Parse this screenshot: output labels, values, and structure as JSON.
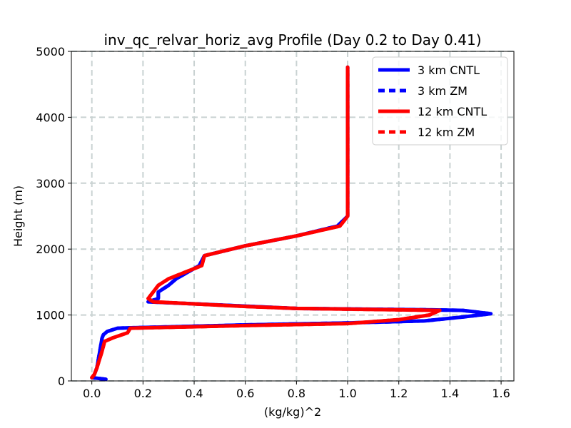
{
  "chart_data": {
    "type": "line",
    "title": "inv_qc_relvar_horiz_avg Profile (Day 0.2 to Day 0.41)",
    "xlabel": "(kg/kg)^2",
    "ylabel": "Height (m)",
    "xlim": [
      -0.08,
      1.65
    ],
    "ylim": [
      0,
      5000
    ],
    "xticks": [
      0.0,
      0.2,
      0.4,
      0.6,
      0.8,
      1.0,
      1.2,
      1.4,
      1.6
    ],
    "xtick_labels": [
      "0.0",
      "0.2",
      "0.4",
      "0.6",
      "0.8",
      "1.0",
      "1.2",
      "1.4",
      "1.6"
    ],
    "yticks": [
      0,
      1000,
      2000,
      3000,
      4000,
      5000
    ],
    "ytick_labels": [
      "0",
      "1000",
      "2000",
      "3000",
      "4000",
      "5000"
    ],
    "grid": true,
    "legend_position": "top-right",
    "series": [
      {
        "name": "3 km CNTL",
        "color": "#0000ff",
        "style": "solid",
        "points": [
          [
            0.055,
            25
          ],
          [
            0.0,
            50
          ],
          [
            0.01,
            100
          ],
          [
            0.02,
            200
          ],
          [
            0.04,
            650
          ],
          [
            0.045,
            700
          ],
          [
            0.06,
            750
          ],
          [
            0.1,
            800
          ],
          [
            0.14,
            805
          ],
          [
            0.6,
            850
          ],
          [
            1.0,
            880
          ],
          [
            1.3,
            910
          ],
          [
            1.45,
            970
          ],
          [
            1.56,
            1020
          ],
          [
            1.45,
            1070
          ],
          [
            1.3,
            1080
          ],
          [
            0.8,
            1100
          ],
          [
            0.22,
            1200
          ],
          [
            0.26,
            1250
          ],
          [
            0.26,
            1350
          ],
          [
            0.3,
            1450
          ],
          [
            0.33,
            1550
          ],
          [
            0.42,
            1750
          ],
          [
            0.44,
            1900
          ],
          [
            0.6,
            2050
          ],
          [
            0.8,
            2200
          ],
          [
            0.96,
            2350
          ],
          [
            1.0,
            2500
          ],
          [
            1.0,
            3000
          ],
          [
            1.0,
            4000
          ],
          [
            1.0,
            4760
          ]
        ]
      },
      {
        "name": "3 km ZM",
        "color": "#0000ff",
        "style": "dashed",
        "points": [
          [
            0.055,
            25
          ],
          [
            0.0,
            50
          ],
          [
            0.01,
            100
          ],
          [
            0.02,
            200
          ],
          [
            0.04,
            650
          ],
          [
            0.045,
            700
          ],
          [
            0.06,
            750
          ],
          [
            0.1,
            800
          ],
          [
            0.14,
            805
          ],
          [
            0.6,
            850
          ],
          [
            1.0,
            880
          ],
          [
            1.3,
            910
          ],
          [
            1.45,
            970
          ],
          [
            1.56,
            1020
          ],
          [
            1.45,
            1070
          ],
          [
            1.3,
            1080
          ],
          [
            0.8,
            1100
          ],
          [
            0.22,
            1200
          ],
          [
            0.26,
            1250
          ],
          [
            0.26,
            1350
          ],
          [
            0.3,
            1450
          ],
          [
            0.33,
            1550
          ],
          [
            0.42,
            1750
          ],
          [
            0.44,
            1900
          ],
          [
            0.6,
            2050
          ],
          [
            0.8,
            2200
          ],
          [
            0.96,
            2350
          ],
          [
            1.0,
            2500
          ],
          [
            1.0,
            3000
          ],
          [
            1.0,
            4000
          ],
          [
            1.0,
            4760
          ]
        ]
      },
      {
        "name": "12 km CNTL",
        "color": "#ff0000",
        "style": "solid",
        "points": [
          [
            0.0,
            50
          ],
          [
            0.01,
            100
          ],
          [
            0.02,
            200
          ],
          [
            0.04,
            450
          ],
          [
            0.05,
            600
          ],
          [
            0.08,
            650
          ],
          [
            0.14,
            730
          ],
          [
            0.15,
            800
          ],
          [
            0.6,
            840
          ],
          [
            1.0,
            870
          ],
          [
            1.2,
            930
          ],
          [
            1.32,
            1000
          ],
          [
            1.36,
            1070
          ],
          [
            0.8,
            1100
          ],
          [
            0.6,
            1130
          ],
          [
            0.24,
            1200
          ],
          [
            0.22,
            1250
          ],
          [
            0.24,
            1350
          ],
          [
            0.26,
            1450
          ],
          [
            0.3,
            1550
          ],
          [
            0.43,
            1750
          ],
          [
            0.44,
            1900
          ],
          [
            0.6,
            2050
          ],
          [
            0.8,
            2200
          ],
          [
            0.97,
            2350
          ],
          [
            1.0,
            2500
          ],
          [
            1.0,
            3000
          ],
          [
            1.0,
            4000
          ],
          [
            1.0,
            4760
          ]
        ]
      },
      {
        "name": "12 km ZM",
        "color": "#ff0000",
        "style": "dashed",
        "points": [
          [
            0.0,
            50
          ],
          [
            0.01,
            100
          ],
          [
            0.02,
            200
          ],
          [
            0.04,
            450
          ],
          [
            0.05,
            600
          ],
          [
            0.08,
            650
          ],
          [
            0.14,
            730
          ],
          [
            0.15,
            800
          ],
          [
            0.6,
            840
          ],
          [
            1.0,
            870
          ],
          [
            1.2,
            930
          ],
          [
            1.32,
            1000
          ],
          [
            1.36,
            1070
          ],
          [
            0.8,
            1100
          ],
          [
            0.6,
            1130
          ],
          [
            0.24,
            1200
          ],
          [
            0.22,
            1250
          ],
          [
            0.24,
            1350
          ],
          [
            0.26,
            1450
          ],
          [
            0.3,
            1550
          ],
          [
            0.43,
            1750
          ],
          [
            0.44,
            1900
          ],
          [
            0.6,
            2050
          ],
          [
            0.8,
            2200
          ],
          [
            0.97,
            2350
          ],
          [
            1.0,
            2500
          ],
          [
            1.0,
            3000
          ],
          [
            1.0,
            4000
          ],
          [
            1.0,
            4760
          ]
        ]
      }
    ]
  }
}
